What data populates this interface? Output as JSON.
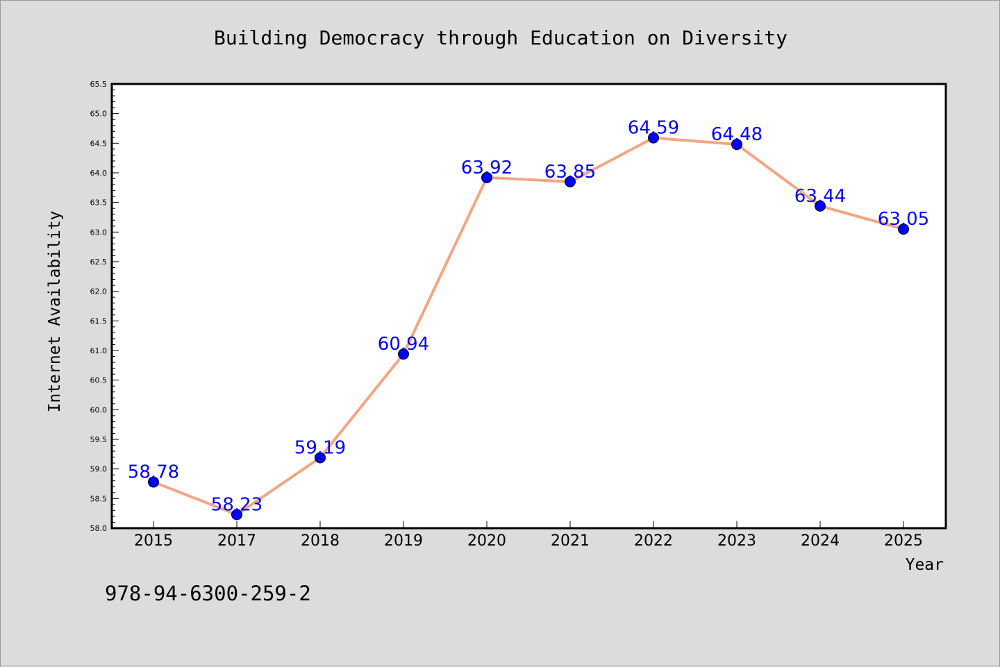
{
  "chart_data": {
    "type": "line",
    "title": "Building Democracy through Education on Diversity",
    "xlabel": "Year",
    "ylabel": "Internet Availability",
    "categories": [
      "2015",
      "2017",
      "2018",
      "2019",
      "2020",
      "2021",
      "2022",
      "2023",
      "2024",
      "2025"
    ],
    "series": [
      {
        "values": [
          58.78,
          58.23,
          59.19,
          60.94,
          63.92,
          63.85,
          64.59,
          64.48,
          63.44,
          63.05
        ],
        "labels": [
          "58.78",
          "58.23",
          "59.19",
          "60.94",
          "63.92",
          "63.85",
          "64.59",
          "64.48",
          "63.44",
          "63.05"
        ]
      }
    ],
    "ylim": [
      58.0,
      65.5
    ],
    "yticks": [
      "58.0",
      "58.5",
      "59.0",
      "59.5",
      "60.0",
      "60.5",
      "61.0",
      "61.5",
      "62.0",
      "62.5",
      "63.0",
      "63.5",
      "64.0",
      "64.5",
      "65.0",
      "65.5"
    ],
    "grid": false,
    "line_color": "#f4a582",
    "marker_color": "#0000ff",
    "label_color": "#0000ff"
  },
  "footer": {
    "isbn": "978-94-6300-259-2"
  }
}
